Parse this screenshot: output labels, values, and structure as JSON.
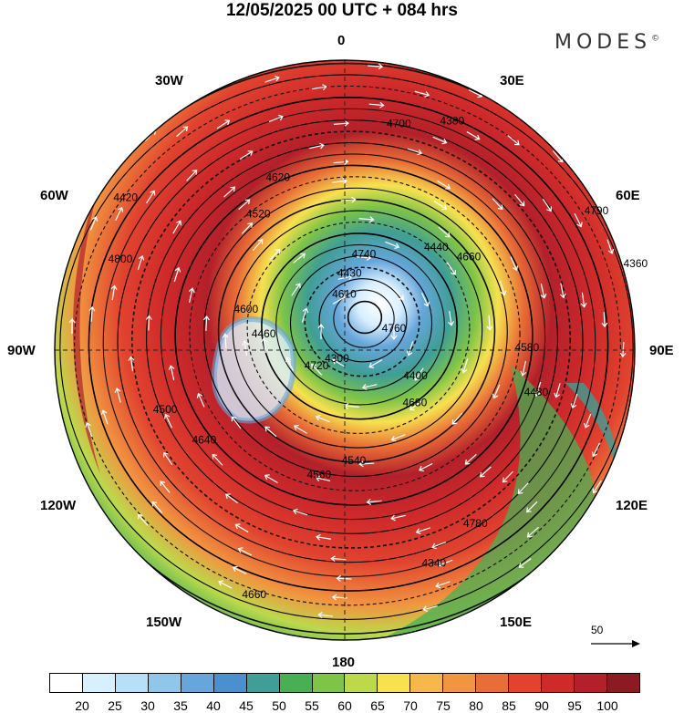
{
  "title": "12/05/2025  00 UTC  + 084 hrs",
  "logo": "MODES",
  "logo_mark": "©",
  "longitude_labels": {
    "top": "0",
    "top_left": "30W",
    "top_right": "30E",
    "upper_left": "60W",
    "upper_right": "60E",
    "left": "90W",
    "right": "90E",
    "lower_left": "120W",
    "lower_right": "120E",
    "bottom_left": "150W",
    "bottom_right": "150E",
    "bottom": "180"
  },
  "contour_labels": [
    "4760",
    "4720",
    "4740",
    "4680",
    "4600",
    "4660",
    "4560",
    "4620",
    "4480",
    "4500",
    "4380",
    "4340",
    "4420",
    "4360",
    "4300",
    "4430",
    "4400",
    "4460",
    "4440",
    "4540",
    "4520",
    "4580",
    "4640",
    "4700",
    "4780",
    "4800",
    "4790",
    "4660",
    "4610"
  ],
  "vector_reference": "50",
  "colorbar": {
    "colors": [
      "#ffffff",
      "#d8efff",
      "#b6e0f8",
      "#8fc6ea",
      "#66a6db",
      "#4a90cf",
      "#3f9e96",
      "#48b053",
      "#7dc447",
      "#bcd94c",
      "#f7e14f",
      "#f6b84a",
      "#f19540",
      "#e96d36",
      "#e1432e",
      "#cf2a2a",
      "#b3202a",
      "#8c1a22"
    ],
    "ticks": [
      "20",
      "25",
      "30",
      "35",
      "40",
      "45",
      "50",
      "55",
      "60",
      "65",
      "70",
      "75",
      "80",
      "85",
      "90",
      "95",
      "100"
    ]
  },
  "colors": {
    "strong_wind": "#c0252d",
    "moderate_wind": "#f08a3c",
    "weak_wind": "#57b84f",
    "calm_core": "#6fa4dc"
  }
}
